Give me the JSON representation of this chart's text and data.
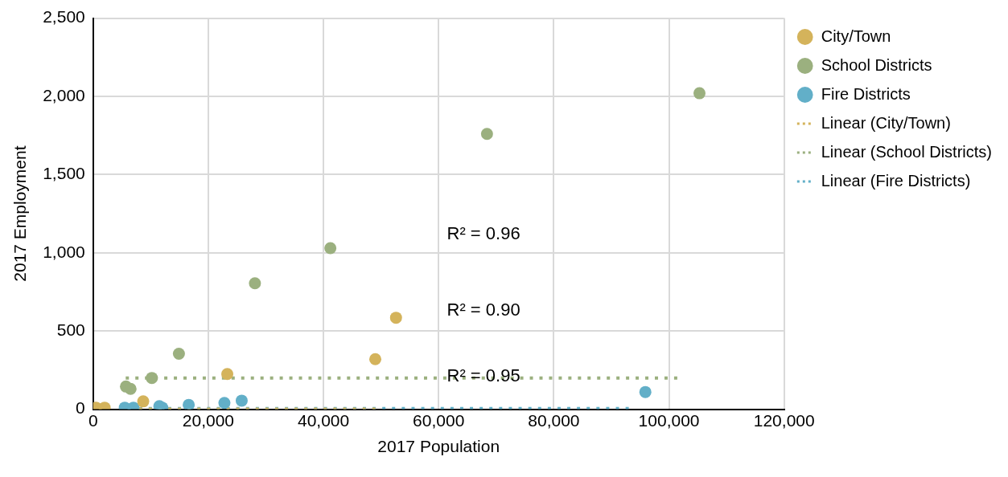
{
  "chart_data": {
    "type": "scatter",
    "xlabel": "2017 Population",
    "ylabel": "2017 Employment",
    "series": [
      {
        "name": "City/Town",
        "marker": "circle",
        "color": "#d4b35b",
        "x": [
          500,
          2000,
          8700,
          23300,
          49000,
          52600
        ],
        "values": [
          10,
          10,
          50,
          225,
          320,
          585
        ]
      },
      {
        "name": "School Districts",
        "marker": "circle",
        "color": "#9bb07f",
        "x": [
          5700,
          6500,
          10200,
          14900,
          28100,
          41200,
          68400,
          105300
        ],
        "values": [
          145,
          130,
          200,
          355,
          805,
          1030,
          1760,
          2020
        ]
      },
      {
        "name": "Fire Districts",
        "marker": "circle",
        "color": "#62afc8",
        "x": [
          5500,
          7000,
          11500,
          12000,
          16600,
          22800,
          25800,
          95900
        ],
        "values": [
          10,
          10,
          20,
          10,
          28,
          40,
          55,
          110
        ]
      },
      {
        "name": "Linear (City/Town)",
        "type": "line",
        "marker": "none",
        "line_style": "dotted",
        "color": "#d4b35b",
        "x": [
          7400,
          49600
        ],
        "values": [
          0,
          0
        ]
      },
      {
        "name": "Linear (School Districts)",
        "type": "line",
        "marker": "none",
        "line_style": "dotted",
        "color": "#9bb07f",
        "x": [
          5100,
          102000
        ],
        "values": [
          200,
          200
        ]
      },
      {
        "name": "Linear (Fire Districts)",
        "type": "line",
        "marker": "none",
        "line_style": "dotted",
        "color": "#62afc8",
        "x": [
          7400,
          93600
        ],
        "values": [
          5,
          5
        ]
      }
    ],
    "xlim": [
      0,
      120000
    ],
    "xticks": [
      0,
      {
        "value": 20000,
        "label": "20,000"
      },
      {
        "value": 40000,
        "label": "40,000"
      },
      {
        "value": 60000,
        "label": "60,000"
      },
      {
        "value": 80000,
        "label": "80,000"
      },
      {
        "value": 100000,
        "label": "100,000"
      },
      {
        "value": 120000,
        "label": "120,000"
      }
    ],
    "ylim": [
      0,
      2500
    ],
    "yticks": [
      0,
      500,
      {
        "value": 1000,
        "label": "1,000"
      },
      {
        "value": 1500,
        "label": "1,500"
      },
      {
        "value": 2000,
        "label": "2,000"
      },
      {
        "value": 2500,
        "label": "2,500"
      }
    ],
    "grid": true,
    "legend": "right",
    "annotations": [
      "R² = 0.96",
      "R² = 0.90",
      "R² = 0.95"
    ]
  }
}
